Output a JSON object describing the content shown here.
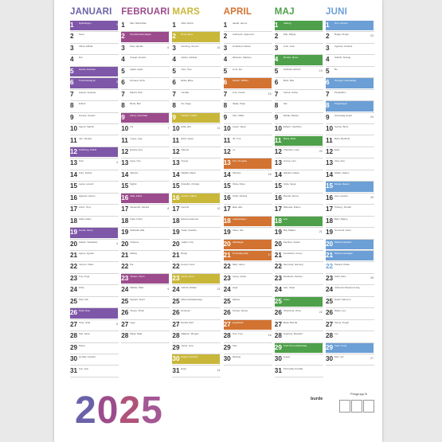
{
  "year": "2025",
  "brand": "burde",
  "product_code": "Prisgrupp B",
  "colors": {
    "purple": "#7e57a8",
    "magenta": "#9c4c8c",
    "olive": "#c9b73a",
    "orange": "#d27332",
    "green": "#4ea04a",
    "blue": "#6b9fd5"
  },
  "months": [
    {
      "name": "JANUARI",
      "color": "#6a62a8",
      "days": [
        {
          "d": "1",
          "wd": "O",
          "names": "Nyårsdagen",
          "hl": "#7e57a8",
          "wk": "1"
        },
        {
          "d": "2",
          "wd": "T",
          "names": "Svea"
        },
        {
          "d": "3",
          "wd": "F",
          "names": "Alfred, Alfrida"
        },
        {
          "d": "4",
          "wd": "L",
          "names": "Rut"
        },
        {
          "d": "5",
          "wd": "S",
          "names": "Hanna, Hannele",
          "hl": "#7e57a8"
        },
        {
          "d": "6",
          "wd": "M",
          "names": "Trettondedag jul",
          "hl": "#7e57a8",
          "wk": "2"
        },
        {
          "d": "7",
          "wd": "T",
          "names": "August, Augusta"
        },
        {
          "d": "8",
          "wd": "O",
          "names": "Erland"
        },
        {
          "d": "9",
          "wd": "T",
          "names": "Gunnar, Gunder"
        },
        {
          "d": "10",
          "wd": "F",
          "names": "Sigurd, Sigbritt"
        },
        {
          "d": "11",
          "wd": "L",
          "names": "Jan, Jannike"
        },
        {
          "d": "12",
          "wd": "S",
          "names": "Frideborg, Fridolf",
          "hl": "#7e57a8"
        },
        {
          "d": "13",
          "wd": "M",
          "names": "Knut",
          "wk": "3"
        },
        {
          "d": "14",
          "wd": "T",
          "names": "Felix, Felicia"
        },
        {
          "d": "15",
          "wd": "O",
          "names": "Laura, Lorentz"
        },
        {
          "d": "16",
          "wd": "T",
          "names": "Hjalmar, Helmer"
        },
        {
          "d": "17",
          "wd": "F",
          "names": "Anton, Tony"
        },
        {
          "d": "18",
          "wd": "L",
          "names": "Hilda, Hildur"
        },
        {
          "d": "19",
          "wd": "S",
          "names": "Henrik, Henry",
          "hl": "#7e57a8"
        },
        {
          "d": "20",
          "wd": "M",
          "names": "Fabian, Sebastian",
          "wk": "4"
        },
        {
          "d": "21",
          "wd": "T",
          "names": "Agnes, Agneta"
        },
        {
          "d": "22",
          "wd": "O",
          "names": "Vincent, Viktor"
        },
        {
          "d": "23",
          "wd": "T",
          "names": "Frej, Freja"
        },
        {
          "d": "24",
          "wd": "F",
          "names": "Erika"
        },
        {
          "d": "25",
          "wd": "L",
          "names": "Paul, Pål"
        },
        {
          "d": "26",
          "wd": "S",
          "names": "Bodil, Boel",
          "hl": "#7e57a8"
        },
        {
          "d": "27",
          "wd": "M",
          "names": "Göte, Göta",
          "wk": "5"
        },
        {
          "d": "28",
          "wd": "T",
          "names": "Karl, Karla"
        },
        {
          "d": "29",
          "wd": "O",
          "names": "Diana"
        },
        {
          "d": "30",
          "wd": "T",
          "names": "Gunilla, Gunhild"
        },
        {
          "d": "31",
          "wd": "F",
          "names": "Ivar, Joar"
        }
      ]
    },
    {
      "name": "FEBRUARI",
      "color": "#9c4c8c",
      "days": [
        {
          "d": "1",
          "wd": "L",
          "names": "Max, Maximilian"
        },
        {
          "d": "2",
          "wd": "S",
          "names": "Kyndelsmässodagen",
          "hl": "#9c4c8c"
        },
        {
          "d": "3",
          "wd": "M",
          "names": "Disa, Hjördis",
          "wk": "6"
        },
        {
          "d": "4",
          "wd": "T",
          "names": "Ansgar, Anselm"
        },
        {
          "d": "5",
          "wd": "O",
          "names": "Agata, Agda"
        },
        {
          "d": "6",
          "wd": "T",
          "names": "Dorotea, Doris"
        },
        {
          "d": "7",
          "wd": "F",
          "names": "Rikard, Dick"
        },
        {
          "d": "8",
          "wd": "L",
          "names": "Berta, Bert"
        },
        {
          "d": "9",
          "wd": "S",
          "names": "Fanny, Franciska",
          "hl": "#9c4c8c"
        },
        {
          "d": "10",
          "wd": "M",
          "names": "Iris",
          "wk": "7"
        },
        {
          "d": "11",
          "wd": "T",
          "names": "Yngve, Inge"
        },
        {
          "d": "12",
          "wd": "O",
          "names": "Evelina, Evy"
        },
        {
          "d": "13",
          "wd": "T",
          "names": "Agne, Ove"
        },
        {
          "d": "14",
          "wd": "F",
          "names": "Valentin"
        },
        {
          "d": "15",
          "wd": "L",
          "names": "Sigfrid"
        },
        {
          "d": "16",
          "wd": "S",
          "names": "Julia, Julius",
          "hl": "#9c4c8c"
        },
        {
          "d": "17",
          "wd": "M",
          "names": "Alexandra, Sandra",
          "wk": "8"
        },
        {
          "d": "18",
          "wd": "T",
          "names": "Frida, Fritiof"
        },
        {
          "d": "19",
          "wd": "O",
          "names": "Gabriella, Ella"
        },
        {
          "d": "20",
          "wd": "T",
          "names": "Vivianne"
        },
        {
          "d": "21",
          "wd": "F",
          "names": "Hilding"
        },
        {
          "d": "22",
          "wd": "L",
          "names": "Pia"
        },
        {
          "d": "23",
          "wd": "S",
          "names": "Torsten, Torun",
          "hl": "#9c4c8c"
        },
        {
          "d": "24",
          "wd": "M",
          "names": "Mattias, Mats",
          "wk": "9"
        },
        {
          "d": "25",
          "wd": "T",
          "names": "Sigvard, Sivert"
        },
        {
          "d": "26",
          "wd": "O",
          "names": "Torgny, Torkel"
        },
        {
          "d": "27",
          "wd": "T",
          "names": "Lage"
        },
        {
          "d": "28",
          "wd": "F",
          "names": "Maria, Maja"
        }
      ]
    },
    {
      "name": "MARS",
      "color": "#c9b73a",
      "days": [
        {
          "d": "1",
          "wd": "L",
          "names": "Albin, Elvira"
        },
        {
          "d": "2",
          "wd": "S",
          "names": "Ernst, Erna",
          "hl": "#c9b73a"
        },
        {
          "d": "3",
          "wd": "M",
          "names": "Gunborg, Gunvor",
          "wk": "10"
        },
        {
          "d": "4",
          "wd": "T",
          "names": "Adrian, Adriana"
        },
        {
          "d": "5",
          "wd": "O",
          "names": "Tora, Tove"
        },
        {
          "d": "6",
          "wd": "T",
          "names": "Ebba, Ebbe"
        },
        {
          "d": "7",
          "wd": "F",
          "names": "Camilla"
        },
        {
          "d": "8",
          "wd": "L",
          "names": "Siv, Saga"
        },
        {
          "d": "9",
          "wd": "S",
          "names": "Torbjörn, Torleif",
          "hl": "#c9b73a"
        },
        {
          "d": "10",
          "wd": "M",
          "names": "Edla, Ada",
          "wk": "11"
        },
        {
          "d": "11",
          "wd": "T",
          "names": "Edvin, Egon"
        },
        {
          "d": "12",
          "wd": "O",
          "names": "Viktoria"
        },
        {
          "d": "13",
          "wd": "T",
          "names": "Greger"
        },
        {
          "d": "14",
          "wd": "F",
          "names": "Matilda, Maud"
        },
        {
          "d": "15",
          "wd": "L",
          "names": "Kristoffer, Christel"
        },
        {
          "d": "16",
          "wd": "S",
          "names": "Herbert, Gilbert",
          "hl": "#c9b73a"
        },
        {
          "d": "17",
          "wd": "M",
          "names": "Gertrud",
          "wk": "12"
        },
        {
          "d": "18",
          "wd": "T",
          "names": "Edvard, Edmund"
        },
        {
          "d": "19",
          "wd": "O",
          "names": "Josef, Josefina"
        },
        {
          "d": "20",
          "wd": "T",
          "names": "Joakim, Kim"
        },
        {
          "d": "21",
          "wd": "F",
          "names": "Bengt"
        },
        {
          "d": "22",
          "wd": "L",
          "names": "Kennet, Kent"
        },
        {
          "d": "23",
          "wd": "S",
          "names": "Gerda, Gerd",
          "hl": "#c9b73a"
        },
        {
          "d": "24",
          "wd": "M",
          "names": "Gabriel, Rafael",
          "wk": "13"
        },
        {
          "d": "25",
          "wd": "T",
          "names": "Marie bebådelsedag"
        },
        {
          "d": "26",
          "wd": "O",
          "names": "Emanuel"
        },
        {
          "d": "27",
          "wd": "T",
          "names": "Rudolf, Ralf"
        },
        {
          "d": "28",
          "wd": "F",
          "names": "Malkolm, Morgan"
        },
        {
          "d": "29",
          "wd": "L",
          "names": "Jonas, Jens"
        },
        {
          "d": "30",
          "wd": "S",
          "names": "Holger, Holmfrid",
          "hl": "#c9b73a"
        },
        {
          "d": "31",
          "wd": "M",
          "names": "Ester",
          "wk": "14"
        }
      ]
    },
    {
      "name": "APRIL",
      "color": "#d27332",
      "days": [
        {
          "d": "1",
          "wd": "T",
          "names": "Harald, Hervor"
        },
        {
          "d": "2",
          "wd": "O",
          "names": "Gudmund, Ingemund"
        },
        {
          "d": "3",
          "wd": "T",
          "names": "Ferdinand, Nanna"
        },
        {
          "d": "4",
          "wd": "F",
          "names": "Marianne, Marlene"
        },
        {
          "d": "5",
          "wd": "L",
          "names": "Irene, Irja"
        },
        {
          "d": "6",
          "wd": "S",
          "names": "Vilhelm, William",
          "hl": "#d27332"
        },
        {
          "d": "7",
          "wd": "M",
          "names": "Irma, Irmelin",
          "wk": "15"
        },
        {
          "d": "8",
          "wd": "T",
          "names": "Nadja, Tanja"
        },
        {
          "d": "9",
          "wd": "O",
          "names": "Otto, Ottilia"
        },
        {
          "d": "10",
          "wd": "T",
          "names": "Ingvar, Ingvor"
        },
        {
          "d": "11",
          "wd": "F",
          "names": "Ulf, Ylva"
        },
        {
          "d": "12",
          "wd": "L",
          "names": "Liv"
        },
        {
          "d": "13",
          "wd": "S",
          "names": "Artur, Douglas",
          "hl": "#d27332"
        },
        {
          "d": "14",
          "wd": "M",
          "names": "Tiburtius",
          "wk": "16"
        },
        {
          "d": "15",
          "wd": "T",
          "names": "Olivia, Oliver"
        },
        {
          "d": "16",
          "wd": "O",
          "names": "Patrik, Patricia"
        },
        {
          "d": "17",
          "wd": "T",
          "names": "Elias, Elis"
        },
        {
          "d": "18",
          "wd": "F",
          "names": "Långfredagen",
          "hl": "#d27332"
        },
        {
          "d": "19",
          "wd": "L",
          "names": "Olaus, Ola"
        },
        {
          "d": "20",
          "wd": "S",
          "names": "Påskdagen",
          "hl": "#d27332"
        },
        {
          "d": "21",
          "wd": "M",
          "names": "Annandag påsk",
          "hl": "#d27332",
          "wk": "17"
        },
        {
          "d": "22",
          "wd": "T",
          "names": "Allan, Glenn"
        },
        {
          "d": "23",
          "wd": "O",
          "names": "Georg, Göran"
        },
        {
          "d": "24",
          "wd": "T",
          "names": "Vega"
        },
        {
          "d": "25",
          "wd": "F",
          "names": "Markus"
        },
        {
          "d": "26",
          "wd": "L",
          "names": "Teresia, Terese"
        },
        {
          "d": "27",
          "wd": "S",
          "names": "Engelbrekt",
          "hl": "#d27332"
        },
        {
          "d": "28",
          "wd": "M",
          "names": "Ture, Tyra",
          "wk": "18"
        },
        {
          "d": "29",
          "wd": "T",
          "names": "Tyko"
        },
        {
          "d": "30",
          "wd": "O",
          "names": "Mariana"
        }
      ]
    },
    {
      "name": "MAJ",
      "color": "#4ea04a",
      "days": [
        {
          "d": "1",
          "wd": "T",
          "names": "Valborg",
          "hl": "#4ea04a"
        },
        {
          "d": "2",
          "wd": "F",
          "names": "Filip, Filippa"
        },
        {
          "d": "3",
          "wd": "L",
          "names": "John, Jane"
        },
        {
          "d": "4",
          "wd": "S",
          "names": "Monika, Mona",
          "hl": "#4ea04a"
        },
        {
          "d": "5",
          "wd": "M",
          "names": "Gotthard, Erhard",
          "wk": "19"
        },
        {
          "d": "6",
          "wd": "T",
          "names": "Marit, Rita"
        },
        {
          "d": "7",
          "wd": "O",
          "names": "Carina, Carita"
        },
        {
          "d": "8",
          "wd": "T",
          "names": "Åke"
        },
        {
          "d": "9",
          "wd": "F",
          "names": "Reidar, Reidun"
        },
        {
          "d": "10",
          "wd": "L",
          "names": "Esbjörn, Styrbjörn"
        },
        {
          "d": "11",
          "wd": "S",
          "names": "Märta, Märit",
          "hl": "#4ea04a"
        },
        {
          "d": "12",
          "wd": "M",
          "names": "Charlotta, Lotta",
          "wk": "20"
        },
        {
          "d": "13",
          "wd": "T",
          "names": "Linnea, Linn"
        },
        {
          "d": "14",
          "wd": "O",
          "names": "Halvard, Halvar"
        },
        {
          "d": "15",
          "wd": "T",
          "names": "Sofia, Sonja"
        },
        {
          "d": "16",
          "wd": "F",
          "names": "Ronald, Ronny"
        },
        {
          "d": "17",
          "wd": "L",
          "names": "Rebecka, Ruben"
        },
        {
          "d": "18",
          "wd": "S",
          "names": "Erik",
          "hl": "#4ea04a"
        },
        {
          "d": "19",
          "wd": "M",
          "names": "Maj, Majken",
          "wk": "21"
        },
        {
          "d": "20",
          "wd": "T",
          "names": "Karolina, Carola"
        },
        {
          "d": "21",
          "wd": "O",
          "names": "Konstantin, Conny"
        },
        {
          "d": "22",
          "wd": "T",
          "names": "Hemming, Henning"
        },
        {
          "d": "23",
          "wd": "F",
          "names": "Desideria, Desirée"
        },
        {
          "d": "24",
          "wd": "L",
          "names": "Ivan, Vanja"
        },
        {
          "d": "25",
          "wd": "S",
          "names": "Urban",
          "hl": "#4ea04a"
        },
        {
          "d": "26",
          "wd": "M",
          "names": "Vilhelmina, Vilma",
          "wk": "22"
        },
        {
          "d": "27",
          "wd": "T",
          "names": "Beda, Blenda"
        },
        {
          "d": "28",
          "wd": "O",
          "names": "Ingeborg, Borghild"
        },
        {
          "d": "29",
          "wd": "T",
          "names": "Kristi himmelsfärdsdag",
          "hl": "#4ea04a"
        },
        {
          "d": "30",
          "wd": "F",
          "names": "Jesper"
        },
        {
          "d": "31",
          "wd": "L",
          "names": "Petronella, Pernilla"
        }
      ]
    },
    {
      "name": "JUNI",
      "color": "#6b9fd5",
      "days": [
        {
          "d": "1",
          "wd": "S",
          "names": "Gun, Gunnel",
          "hl": "#6b9fd5"
        },
        {
          "d": "2",
          "wd": "M",
          "names": "Rutger, Roger",
          "wk": "23"
        },
        {
          "d": "3",
          "wd": "T",
          "names": "Ingemar, Gudmar"
        },
        {
          "d": "4",
          "wd": "O",
          "names": "Solbritt, Solveig"
        },
        {
          "d": "5",
          "wd": "T",
          "names": "Bo"
        },
        {
          "d": "6",
          "wd": "F",
          "names": "Sveriges nationaldag",
          "hl": "#6b9fd5"
        },
        {
          "d": "7",
          "wd": "L",
          "names": "Pingstafton"
        },
        {
          "d": "8",
          "wd": "S",
          "names": "Pingstdagen",
          "hl": "#6b9fd5"
        },
        {
          "d": "9",
          "wd": "M",
          "names": "Annandag pingst",
          "wk": "24"
        },
        {
          "d": "10",
          "wd": "T",
          "names": "Svante, Boris"
        },
        {
          "d": "11",
          "wd": "O",
          "names": "Bertil, Berthold"
        },
        {
          "d": "12",
          "wd": "T",
          "names": "Eskil"
        },
        {
          "d": "13",
          "wd": "F",
          "names": "Aina, Aino"
        },
        {
          "d": "14",
          "wd": "L",
          "names": "Håkan, Hakon"
        },
        {
          "d": "15",
          "wd": "S",
          "names": "Margit, Margot",
          "hl": "#6b9fd5"
        },
        {
          "d": "16",
          "wd": "M",
          "names": "Axel, Axelina",
          "wk": "25"
        },
        {
          "d": "17",
          "wd": "T",
          "names": "Torborg, Torvald"
        },
        {
          "d": "18",
          "wd": "O",
          "names": "Björn, Bjarne"
        },
        {
          "d": "19",
          "wd": "T",
          "names": "Germund, Görel"
        },
        {
          "d": "20",
          "wd": "F",
          "names": "Midsommarafton",
          "hl": "#6b9fd5"
        },
        {
          "d": "21",
          "wd": "L",
          "names": "Midsommardagen",
          "hl": "#6b9fd5"
        },
        {
          "d": "22",
          "wd": "S",
          "names": "Paulina, Paula"
        },
        {
          "d": "23",
          "wd": "M",
          "names": "Adolf, Alice",
          "wk": "26"
        },
        {
          "d": "24",
          "wd": "T",
          "names": "Johannes Döparens dag"
        },
        {
          "d": "25",
          "wd": "O",
          "names": "David, Salomon"
        },
        {
          "d": "26",
          "wd": "T",
          "names": "Rakel, Lea"
        },
        {
          "d": "27",
          "wd": "F",
          "names": "Selma, Fingal"
        },
        {
          "d": "28",
          "wd": "L",
          "names": "Leo"
        },
        {
          "d": "29",
          "wd": "S",
          "names": "Peter, Petra",
          "hl": "#6b9fd5"
        },
        {
          "d": "30",
          "wd": "M",
          "names": "Elof, Leif",
          "wk": "27"
        }
      ]
    }
  ]
}
